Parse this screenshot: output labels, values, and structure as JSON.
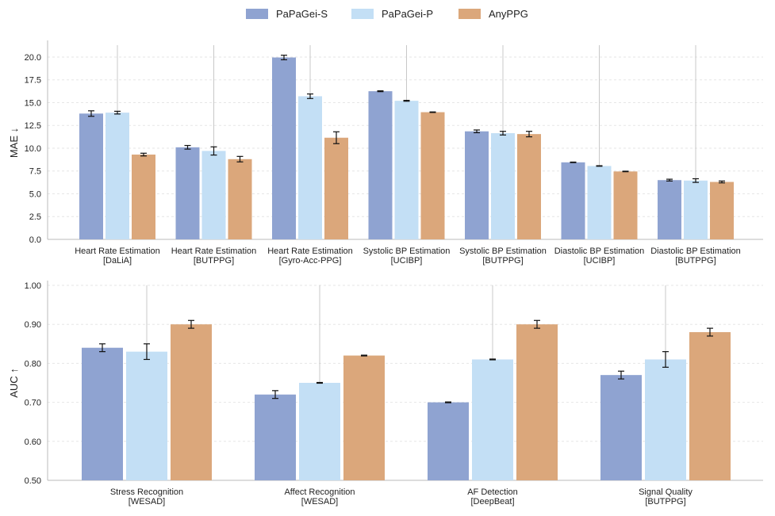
{
  "legend": [
    {
      "name": "PaPaGei-S",
      "color": "#8fa3d1"
    },
    {
      "name": "PaPaGei-P",
      "color": "#c3dff5"
    },
    {
      "name": "AnyPPG",
      "color": "#dba77b"
    }
  ],
  "chart_data": [
    {
      "type": "bar",
      "ylabel": "MAE ↓",
      "ylim": [
        0,
        21.3
      ],
      "yticks": [
        "0.0",
        "2.5",
        "5.0",
        "7.5",
        "10.0",
        "12.5",
        "15.0",
        "17.5",
        "20.0"
      ],
      "categories": [
        [
          "Heart Rate Estimation",
          "[DaLiA]"
        ],
        [
          "Heart Rate Estimation",
          "[BUTPPG]"
        ],
        [
          "Heart Rate Estimation",
          "[Gyro-Acc-PPG]"
        ],
        [
          "Systolic BP Estimation",
          "[UCIBP]"
        ],
        [
          "Systolic BP Estimation",
          "[BUTPPG]"
        ],
        [
          "Diastolic BP Estimation",
          "[UCIBP]"
        ],
        [
          "Diastolic BP Estimation",
          "[BUTPPG]"
        ]
      ],
      "series": [
        {
          "name": "PaPaGei-S",
          "values": [
            13.8,
            10.1,
            19.95,
            16.25,
            11.85,
            8.45,
            6.5
          ],
          "errors": [
            0.3,
            0.2,
            0.25,
            0.05,
            0.15,
            0.03,
            0.1
          ]
        },
        {
          "name": "PaPaGei-P",
          "values": [
            13.9,
            9.7,
            15.7,
            15.2,
            11.65,
            8.05,
            6.45
          ],
          "errors": [
            0.15,
            0.45,
            0.25,
            0.05,
            0.2,
            0.03,
            0.2
          ]
        },
        {
          "name": "AnyPPG",
          "values": [
            9.3,
            8.8,
            11.15,
            13.95,
            11.55,
            7.45,
            6.3
          ],
          "errors": [
            0.15,
            0.3,
            0.65,
            0.03,
            0.3,
            0.03,
            0.1
          ]
        }
      ],
      "grid": true
    },
    {
      "type": "bar",
      "ylabel": "AUC ↑",
      "ylim": [
        0.5,
        1.0
      ],
      "yticks": [
        "0.50",
        "0.60",
        "0.70",
        "0.80",
        "0.90",
        "1.00"
      ],
      "categories": [
        [
          "Stress Recognition",
          "[WESAD]"
        ],
        [
          "Affect Recognition",
          "[WESAD]"
        ],
        [
          "AF Detection",
          "[DeepBeat]"
        ],
        [
          "Signal Quality",
          "[BUTPPG]"
        ]
      ],
      "series": [
        {
          "name": "PaPaGei-S",
          "values": [
            0.84,
            0.72,
            0.7,
            0.77
          ],
          "errors": [
            0.01,
            0.01,
            0.001,
            0.01
          ]
        },
        {
          "name": "PaPaGei-P",
          "values": [
            0.83,
            0.75,
            0.81,
            0.81
          ],
          "errors": [
            0.02,
            0.001,
            0.001,
            0.02
          ]
        },
        {
          "name": "AnyPPG",
          "values": [
            0.9,
            0.82,
            0.9,
            0.88
          ],
          "errors": [
            0.01,
            0.001,
            0.01,
            0.01
          ]
        }
      ],
      "grid": true
    }
  ]
}
